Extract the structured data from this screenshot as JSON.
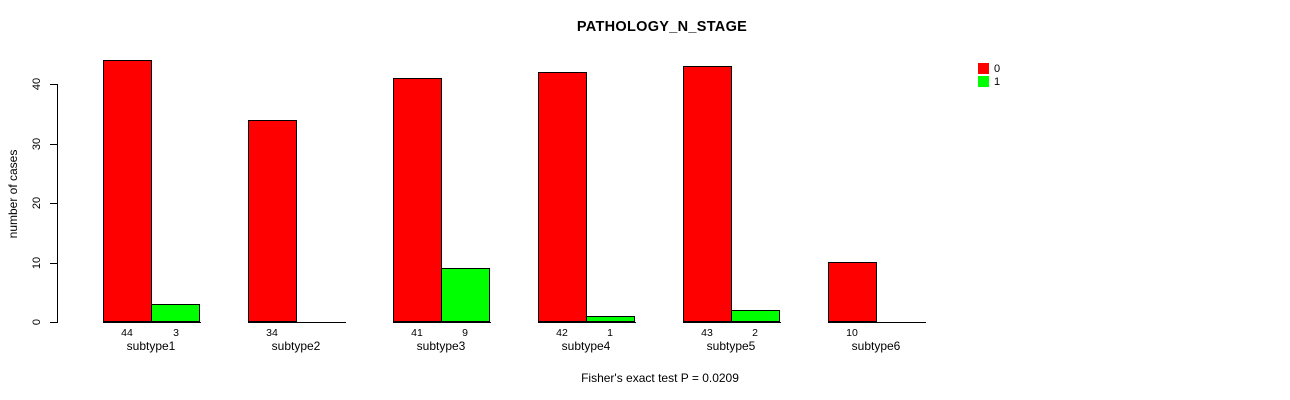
{
  "chart_data": {
    "type": "bar",
    "title": "PATHOLOGY_N_STAGE",
    "xlabel": "",
    "ylabel": "number of cases",
    "categories": [
      "subtype1",
      "subtype2",
      "subtype3",
      "subtype4",
      "subtype5",
      "subtype6"
    ],
    "series": [
      {
        "name": "0",
        "color": "#ff0000",
        "values": [
          44,
          34,
          41,
          42,
          43,
          10
        ]
      },
      {
        "name": "1",
        "color": "#00ff00",
        "values": [
          3,
          0,
          9,
          1,
          2,
          0
        ]
      }
    ],
    "ylim": [
      0,
      44
    ],
    "yticks": [
      0,
      10,
      20,
      30,
      40
    ],
    "grid": false,
    "legend_position": "top-right",
    "value_labels": "shown under each bar, omitted when value is 0",
    "annotation": "Fisher's exact test P = 0.0209"
  }
}
